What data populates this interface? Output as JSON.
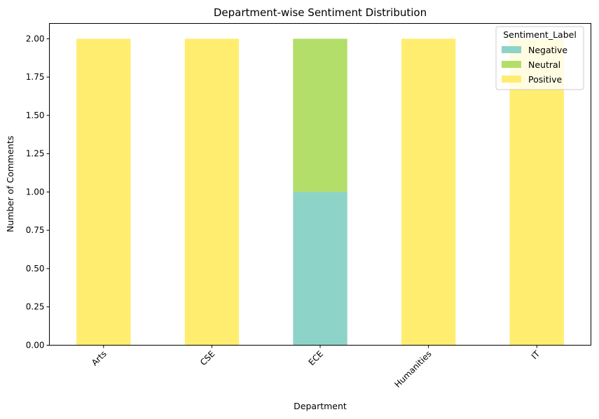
{
  "chart_data": {
    "type": "bar",
    "stacked": true,
    "title": "Department-wise Sentiment Distribution",
    "xlabel": "Department",
    "ylabel": "Number of Comments",
    "categories": [
      "Arts",
      "CSE",
      "ECE",
      "Humanities",
      "IT"
    ],
    "ylim": [
      0,
      2.1
    ],
    "yticks": [
      "0.00",
      "0.25",
      "0.50",
      "0.75",
      "1.00",
      "1.25",
      "1.50",
      "1.75",
      "2.00"
    ],
    "series": [
      {
        "name": "Negative",
        "values": [
          0,
          0,
          1,
          0,
          0
        ],
        "color": "#8dd3c7"
      },
      {
        "name": "Neutral",
        "values": [
          0,
          0,
          1,
          0,
          0
        ],
        "color": "#b3de69"
      },
      {
        "name": "Positive",
        "values": [
          2,
          2,
          0,
          2,
          2
        ],
        "color": "#ffed6f"
      }
    ],
    "legend": {
      "title": "Sentiment_Label",
      "placement": "top-right"
    },
    "grid": false,
    "xtick_rotation": -45
  }
}
